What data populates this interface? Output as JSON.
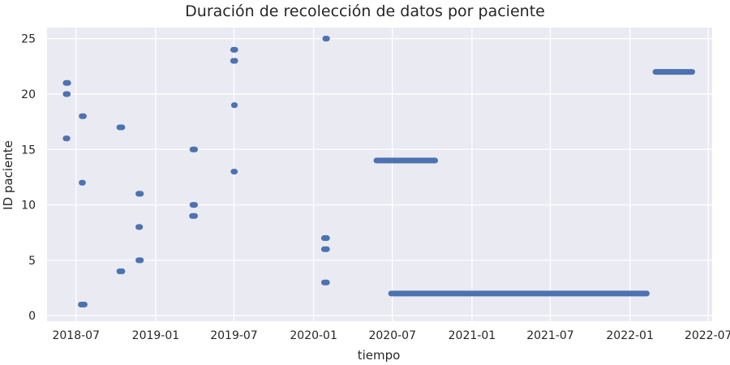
{
  "chart_data": {
    "type": "timeline",
    "title": "Duración de recolección de datos por paciente",
    "xlabel": "tiempo",
    "ylabel": "ID paciente",
    "xlim": [
      "2018-04-25",
      "2022-07-10"
    ],
    "ylim": [
      -0.5,
      26
    ],
    "x_ticks": [
      "2018-07-01",
      "2019-01-01",
      "2019-07-01",
      "2020-01-01",
      "2020-07-01",
      "2021-01-01",
      "2021-07-01",
      "2022-01-01",
      "2022-07-01"
    ],
    "x_tick_labels": [
      "2018-07",
      "2019-01",
      "2019-07",
      "2020-01",
      "2020-07",
      "2021-01",
      "2021-07",
      "2022-01",
      "2022-07"
    ],
    "y_ticks": [
      0,
      5,
      10,
      15,
      20,
      25
    ],
    "y_tick_labels": [
      "0",
      "5",
      "10",
      "15",
      "20",
      "25"
    ],
    "grid": true,
    "colors": {
      "series": "#4c72b0",
      "background": "#eaeaf2",
      "grid": "#ffffff",
      "text": "#262626"
    },
    "series": [
      {
        "segments": [
          {
            "patient": 25,
            "start": "2020-01-28",
            "end": "2020-02-01"
          },
          {
            "patient": 24,
            "start": "2019-06-29",
            "end": "2019-07-04"
          },
          {
            "patient": 23,
            "start": "2019-06-29",
            "end": "2019-07-04"
          },
          {
            "patient": 22,
            "start": "2022-03-01",
            "end": "2022-05-25"
          },
          {
            "patient": 21,
            "start": "2018-06-07",
            "end": "2018-06-13"
          },
          {
            "patient": 20,
            "start": "2018-06-07",
            "end": "2018-06-12"
          },
          {
            "patient": 19,
            "start": "2019-07-01",
            "end": "2019-07-03"
          },
          {
            "patient": 18,
            "start": "2018-07-14",
            "end": "2018-07-19"
          },
          {
            "patient": 17,
            "start": "2018-10-09",
            "end": "2018-10-16"
          },
          {
            "patient": 16,
            "start": "2018-06-07",
            "end": "2018-06-11"
          },
          {
            "patient": 15,
            "start": "2019-03-27",
            "end": "2019-04-02"
          },
          {
            "patient": 14,
            "start": "2020-05-25",
            "end": "2020-10-08"
          },
          {
            "patient": 13,
            "start": "2019-06-30",
            "end": "2019-07-03"
          },
          {
            "patient": 12,
            "start": "2018-07-14",
            "end": "2018-07-17"
          },
          {
            "patient": 11,
            "start": "2018-11-22",
            "end": "2018-11-28"
          },
          {
            "patient": 10,
            "start": "2019-03-27",
            "end": "2019-04-02"
          },
          {
            "patient": 9,
            "start": "2019-03-26",
            "end": "2019-04-02"
          },
          {
            "patient": 8,
            "start": "2018-11-22",
            "end": "2018-11-26"
          },
          {
            "patient": 7,
            "start": "2020-01-25",
            "end": "2020-02-01"
          },
          {
            "patient": 6,
            "start": "2020-01-25",
            "end": "2020-02-01"
          },
          {
            "patient": 5,
            "start": "2018-11-22",
            "end": "2018-11-28"
          },
          {
            "patient": 4,
            "start": "2018-10-09",
            "end": "2018-10-16"
          },
          {
            "patient": 3,
            "start": "2020-01-25",
            "end": "2020-02-01"
          },
          {
            "patient": 2,
            "start": "2020-06-28",
            "end": "2022-02-09"
          },
          {
            "patient": 1,
            "start": "2018-07-12",
            "end": "2018-07-21"
          }
        ]
      }
    ]
  }
}
